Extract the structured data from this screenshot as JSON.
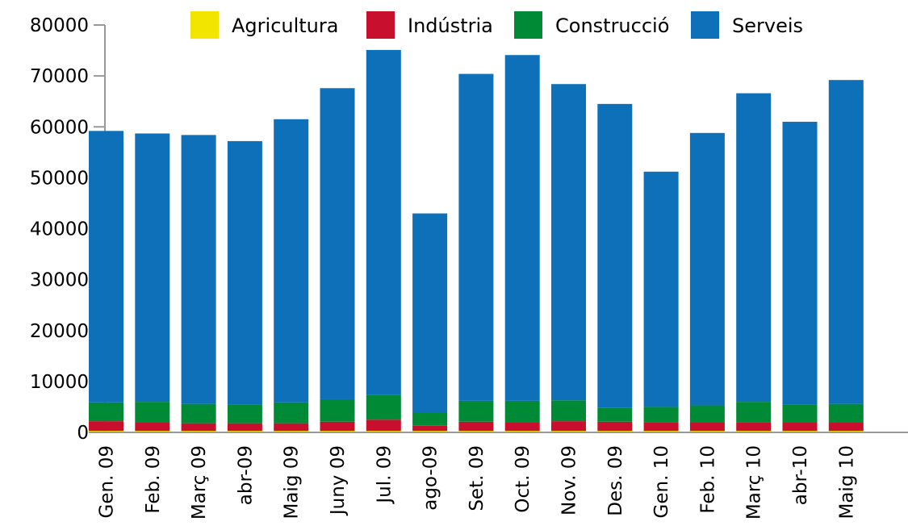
{
  "chart_data": {
    "type": "bar",
    "stacked": true,
    "categories": [
      "Gen. 09",
      "Feb. 09",
      "Març 09",
      "abr-09",
      "Maig 09",
      "Juny 09",
      "Jul. 09",
      "ago-09",
      "Set. 09",
      "Oct. 09",
      "Nov. 09",
      "Des. 09",
      "Gen. 10",
      "Feb. 10",
      "Març 10",
      "abr-10",
      "Maig 10"
    ],
    "series": [
      {
        "name": "Agricultura",
        "color": "#f2e600",
        "values": [
          300,
          300,
          300,
          300,
          300,
          300,
          300,
          300,
          300,
          300,
          300,
          300,
          300,
          300,
          300,
          300,
          300
        ]
      },
      {
        "name": "Indústria",
        "color": "#c8102e",
        "values": [
          1900,
          1600,
          1500,
          1500,
          1500,
          1800,
          2200,
          1000,
          1800,
          1600,
          1900,
          1800,
          1700,
          1600,
          1700,
          1600,
          1600
        ]
      },
      {
        "name": "Construcció",
        "color": "#008a36",
        "values": [
          3700,
          4100,
          3800,
          3600,
          4100,
          4400,
          4900,
          2500,
          4100,
          4300,
          4100,
          2700,
          3000,
          3400,
          4000,
          3500,
          3700
        ]
      },
      {
        "name": "Serveis",
        "color": "#0e70b8",
        "values": [
          53300,
          52700,
          52800,
          51800,
          55600,
          61100,
          67700,
          39200,
          64200,
          67900,
          62100,
          59700,
          46200,
          53500,
          60600,
          55600,
          63600
        ]
      }
    ],
    "ylim": [
      0,
      80000
    ],
    "yticks": [
      0,
      10000,
      20000,
      30000,
      40000,
      50000,
      60000,
      70000,
      80000
    ],
    "legend_position": "top",
    "grid": false
  }
}
